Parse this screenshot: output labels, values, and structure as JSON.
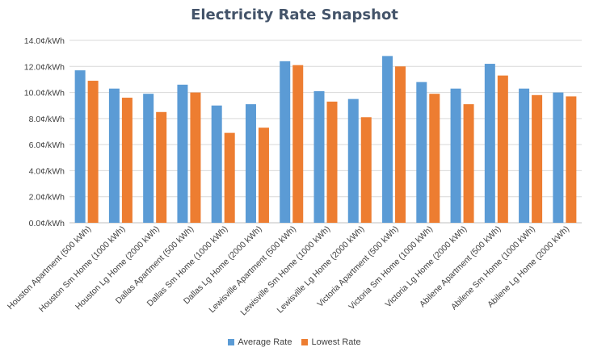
{
  "chart_data": {
    "type": "bar",
    "title": "Electricity Rate Snapshot",
    "xlabel": "",
    "ylabel": "",
    "ylim": [
      0,
      14
    ],
    "yticks": [
      "0.0¢/kWh",
      "2.0¢/kWh",
      "4.0¢/kWh",
      "6.0¢/kWh",
      "8.0¢/kWh",
      "10.0¢/kWh",
      "12.0¢/kWh",
      "14.0¢/kWh"
    ],
    "grid": true,
    "legend_position": "bottom",
    "categories": [
      "Houston  Apartment (500 kWh)",
      "Houston  Sm Home (1000 kWh)",
      "Houston  Lg Home (2000 kWh)",
      "Dallas  Apartment (500 kWh)",
      "Dallas  Sm Home (1000 kWh)",
      "Dallas  Lg Home (2000 kWh)",
      "Lewisville  Apartment (500 kWh)",
      "Lewisville  Sm Home (1000 kWh)",
      "Lewisville  Lg Home (2000 kWh)",
      "Victoria  Apartment (500 kWh)",
      "Victoria  Sm Home (1000 kWh)",
      "Victoria  Lg Home (2000 kWh)",
      "Abilene  Apartment (500 kWh)",
      "Abilene  Sm Home (1000 kWh)",
      "Abilene  Lg Home (2000 kWh)"
    ],
    "series": [
      {
        "name": "Average Rate",
        "color": "#5b9bd5",
        "values": [
          11.7,
          10.3,
          9.9,
          10.6,
          9.0,
          9.1,
          12.4,
          10.1,
          9.5,
          12.8,
          10.8,
          10.3,
          12.2,
          10.3,
          10.0
        ]
      },
      {
        "name": "Lowest Rate",
        "color": "#ed7d31",
        "values": [
          10.9,
          9.6,
          8.5,
          10.0,
          6.9,
          7.3,
          12.1,
          9.3,
          8.1,
          12.0,
          9.9,
          9.1,
          11.3,
          9.8,
          9.7
        ]
      }
    ]
  }
}
